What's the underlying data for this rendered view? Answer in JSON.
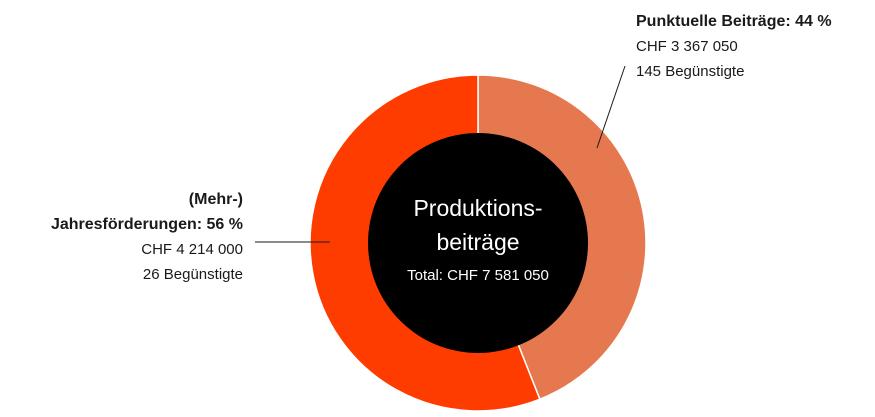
{
  "chart_data": {
    "type": "donut",
    "title": [
      "Produktions-",
      "beiträge"
    ],
    "subtitle": "Total: CHF 7 581 050",
    "values": [
      44,
      56
    ],
    "value_labels": [
      [
        "Punktuelle Beiträge: 44 %"
      ],
      [
        "(Mehr-)",
        "Jahresförderungen: 56 %"
      ]
    ],
    "details": [
      [
        "CHF 3 367 050",
        "145 Begünstigte"
      ],
      [
        "CHF 4 214 000",
        "26 Begünstigte"
      ]
    ],
    "colors": [
      "#e5784f",
      "#ff3c00"
    ],
    "center_color": "#000000"
  }
}
